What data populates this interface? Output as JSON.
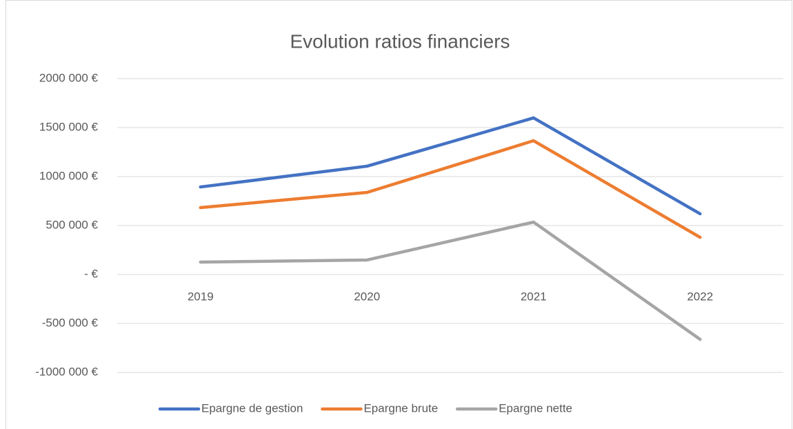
{
  "chart_data": {
    "type": "line",
    "title": "Evolution ratios financiers",
    "categories": [
      "2019",
      "2020",
      "2021",
      "2022"
    ],
    "series": [
      {
        "name": "Epargne de gestion",
        "color": "#4472c4",
        "values": [
          894000,
          1106000,
          1599000,
          620000
        ]
      },
      {
        "name": "Epargne brute",
        "color": "#ed7d31",
        "values": [
          683000,
          838000,
          1366000,
          380000
        ]
      },
      {
        "name": "Epargne nette",
        "color": "#a5a5a5",
        "values": [
          127000,
          148000,
          535000,
          -662000
        ]
      }
    ],
    "ylim": [
      -1000000,
      2000000
    ],
    "yticks": [
      {
        "value": -1000000,
        "label": "-1000 000 €"
      },
      {
        "value": -500000,
        "label": "-500 000 €"
      },
      {
        "value": 0,
        "label": "-  €"
      },
      {
        "value": 500000,
        "label": "500 000 €"
      },
      {
        "value": 1000000,
        "label": "1000 000 €"
      },
      {
        "value": 1500000,
        "label": "1500 000 €"
      },
      {
        "value": 2000000,
        "label": "2000 000 €"
      }
    ],
    "grid": true,
    "legend": "bottom"
  }
}
